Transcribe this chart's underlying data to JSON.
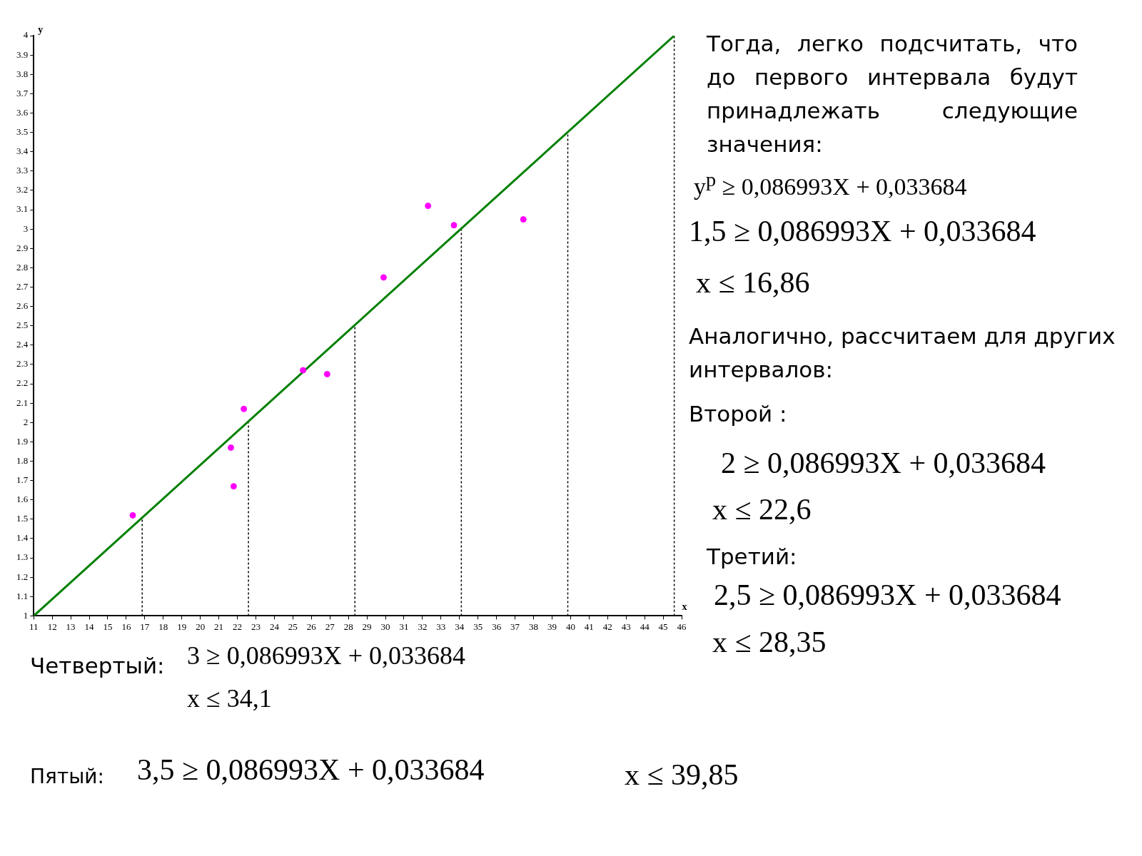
{
  "chart_data": {
    "type": "scatter",
    "xlabel": "x",
    "ylabel": "y",
    "xlim": [
      11,
      46
    ],
    "xticks": [
      11,
      12,
      13,
      14,
      15,
      16,
      17,
      18,
      19,
      20,
      21,
      22,
      23,
      24,
      25,
      26,
      27,
      28,
      29,
      30,
      31,
      32,
      33,
      34,
      35,
      36,
      37,
      38,
      39,
      40,
      41,
      42,
      43,
      44,
      45,
      46
    ],
    "ylim": [
      1,
      4
    ],
    "yticks": [
      1,
      1.1,
      1.2,
      1.3,
      1.4,
      1.5,
      1.6,
      1.7,
      1.8,
      1.9,
      2,
      2.1,
      2.2,
      2.3,
      2.4,
      2.5,
      2.6,
      2.7,
      2.8,
      2.9,
      3,
      3.1,
      3.2,
      3.3,
      3.4,
      3.5,
      3.6,
      3.7,
      3.8,
      3.9,
      4
    ],
    "grid": false,
    "legend": false,
    "series": [
      {
        "type": "scatter",
        "marker": "circle",
        "color": "#ff00ff",
        "x": [
          16.35,
          21.65,
          21.8,
          22.35,
          25.55,
          26.85,
          29.9,
          32.3,
          33.7,
          37.45
        ],
        "values": [
          1.52,
          1.87,
          1.67,
          2.07,
          2.27,
          2.25,
          2.75,
          3.12,
          3.02,
          3.05
        ]
      },
      {
        "type": "line",
        "marker": "none",
        "color": "#008000",
        "line_style": "solid",
        "x": [
          11,
          45.6
        ],
        "values": [
          1,
          4
        ]
      },
      {
        "type": "line",
        "color": "#000000",
        "line_style": "dotted",
        "marker": "none",
        "x": [
          16.86,
          16.86
        ],
        "values": [
          1,
          1.5
        ]
      },
      {
        "type": "line",
        "color": "#000000",
        "line_style": "dotted",
        "marker": "none",
        "x": [
          22.6,
          22.6
        ],
        "values": [
          1,
          2
        ]
      },
      {
        "type": "line",
        "color": "#000000",
        "line_style": "dotted",
        "marker": "none",
        "x": [
          28.35,
          28.35
        ],
        "values": [
          1,
          2.5
        ]
      },
      {
        "type": "line",
        "color": "#000000",
        "line_style": "dotted",
        "marker": "none",
        "x": [
          34.1,
          34.1
        ],
        "values": [
          1,
          3
        ]
      },
      {
        "type": "line",
        "color": "#000000",
        "line_style": "dotted",
        "marker": "none",
        "x": [
          39.85,
          39.85
        ],
        "values": [
          1,
          3.5
        ]
      },
      {
        "type": "line",
        "color": "#000000",
        "line_style": "dotted",
        "marker": "none",
        "x": [
          45.6,
          45.6
        ],
        "values": [
          1,
          4
        ]
      }
    ],
    "annotations": [
      "Тогда, легко подсчитать, что до первого интервала будут принадлежать следующие значения:",
      "y$^{p}$ ≥ 0,086993X + 0,033684",
      "1,5 ≥ 0,086993X + 0,033684",
      "x ≤ 16,86",
      "Аналогично, рассчитаем для других интервалов:",
      "Второй :",
      "2 ≥ 0,086993X + 0,033684",
      "x ≤ 22,6",
      "Третий:",
      "2,5 ≥ 0,086993X + 0,033684",
      "x ≤ 28,35",
      "Четвертый:",
      "3 ≥ 0,086993X + 0,033684",
      "x ≤ 34,1",
      "Пятый:",
      "3,5 ≥ 0,086993X + 0,033684",
      "x ≤ 39,85"
    ]
  }
}
